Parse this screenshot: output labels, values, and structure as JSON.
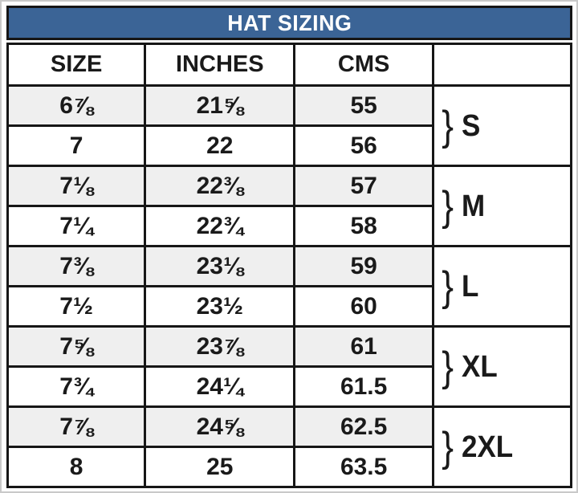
{
  "title": "HAT SIZING",
  "colors": {
    "title_bar_bg": "#3b6496",
    "title_text": "#ffffff",
    "border": "#161616",
    "row_alt_bg": "#efefef",
    "row_bg": "#ffffff"
  },
  "chart_data": {
    "type": "table",
    "title": "HAT SIZING",
    "columns": [
      "SIZE",
      "INCHES",
      "CMS",
      ""
    ],
    "brace_glyph": "}",
    "groups": [
      {
        "label": "S",
        "rows": [
          [
            "6⅞",
            "21⅝",
            "55"
          ],
          [
            "7",
            "22",
            "56"
          ]
        ]
      },
      {
        "label": "M",
        "rows": [
          [
            "7⅛",
            "22⅜",
            "57"
          ],
          [
            "7¼",
            "22¾",
            "58"
          ]
        ]
      },
      {
        "label": "L",
        "rows": [
          [
            "7⅜",
            "23⅛",
            "59"
          ],
          [
            "7½",
            "23½",
            "60"
          ]
        ]
      },
      {
        "label": "XL",
        "rows": [
          [
            "7⅝",
            "23⅞",
            "61"
          ],
          [
            "7¾",
            "24¼",
            "61.5"
          ]
        ]
      },
      {
        "label": "2XL",
        "rows": [
          [
            "7⅞",
            "24⅝",
            "62.5"
          ],
          [
            "8",
            "25",
            "63.5"
          ]
        ]
      }
    ]
  }
}
